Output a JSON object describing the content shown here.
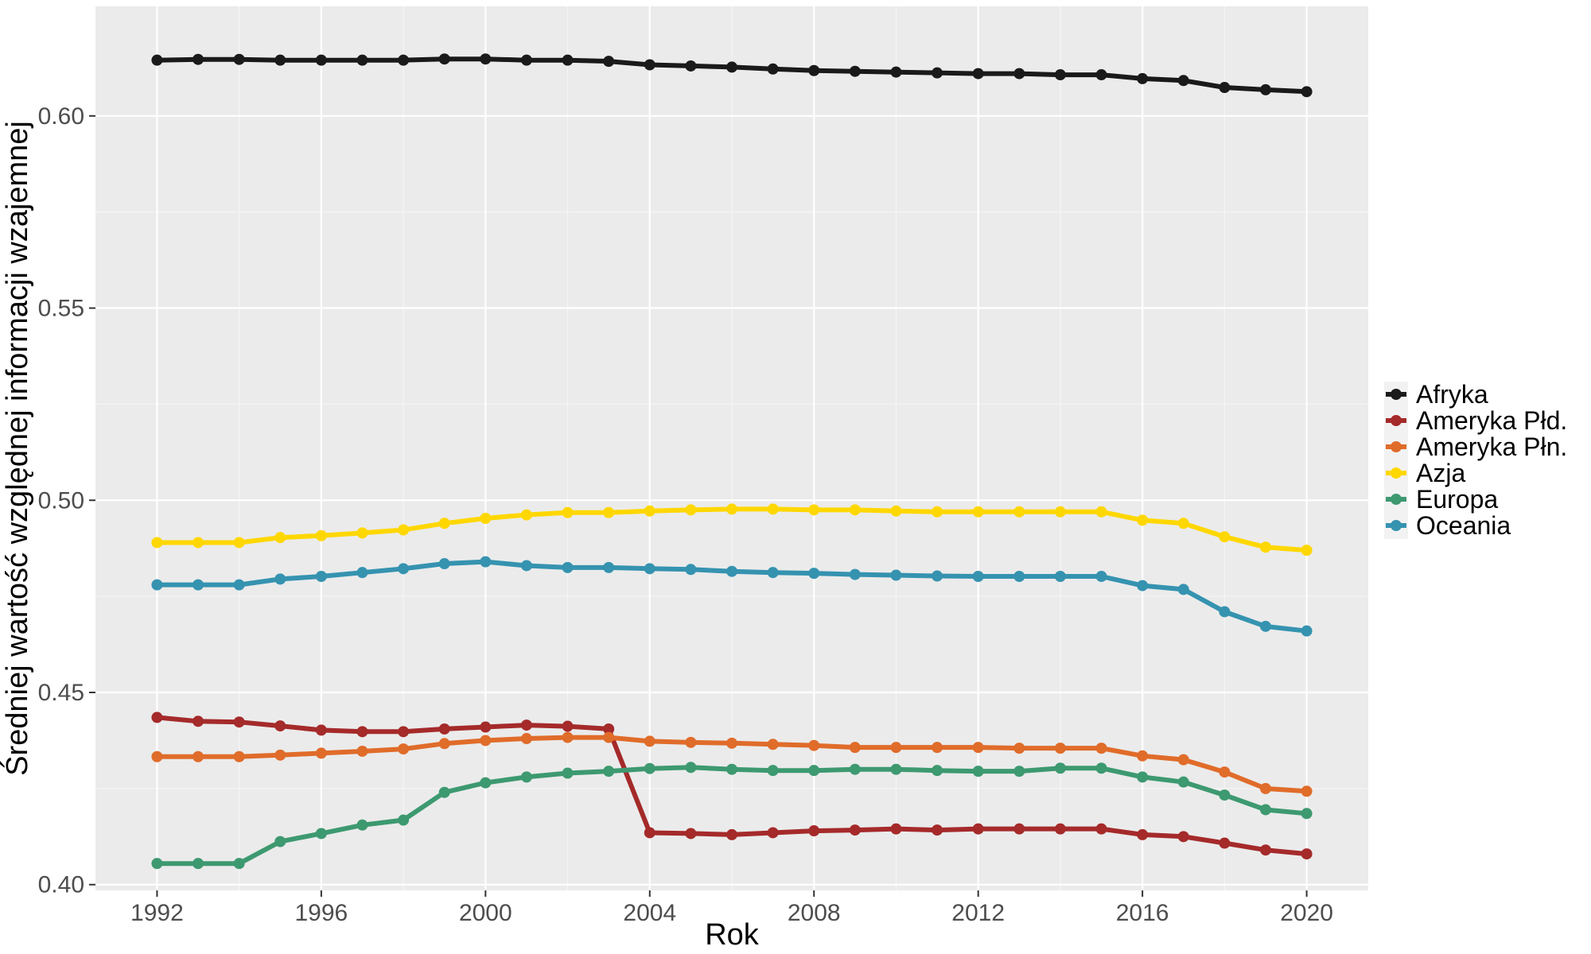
{
  "chart_data": {
    "type": "line",
    "xlabel": "Rok",
    "ylabel": "Średniej wartość względnej informacji wzajemnej",
    "xlim": [
      1990.5,
      2021.5
    ],
    "ylim": [
      0.3985,
      0.6285
    ],
    "x_ticks": [
      1992,
      1996,
      2000,
      2004,
      2008,
      2012,
      2016,
      2020
    ],
    "y_ticks": [
      0.4,
      0.45,
      0.5,
      0.55,
      0.6
    ],
    "y_tick_labels": [
      "0.40",
      "0.45",
      "0.50",
      "0.55",
      "0.60"
    ],
    "grid": true,
    "legend_position": "right",
    "x": [
      1992,
      1993,
      1994,
      1995,
      1996,
      1997,
      1998,
      1999,
      2000,
      2001,
      2002,
      2003,
      2004,
      2005,
      2006,
      2007,
      2008,
      2009,
      2010,
      2011,
      2012,
      2013,
      2014,
      2015,
      2016,
      2017,
      2018,
      2019,
      2020
    ],
    "series": [
      {
        "name": "Afryka",
        "color": "#1a1a1a",
        "values": [
          0.6145,
          0.6147,
          0.6147,
          0.6145,
          0.6145,
          0.6145,
          0.6145,
          0.6148,
          0.6148,
          0.6145,
          0.6145,
          0.6142,
          0.6133,
          0.613,
          0.6127,
          0.6122,
          0.6118,
          0.6116,
          0.6114,
          0.6112,
          0.611,
          0.611,
          0.6107,
          0.6107,
          0.6097,
          0.6092,
          0.6074,
          0.6068,
          0.6063
        ]
      },
      {
        "name": "Ameryka Płd.",
        "color": "#a52a2a",
        "values": [
          0.4435,
          0.4425,
          0.4423,
          0.4413,
          0.4402,
          0.4398,
          0.4398,
          0.4405,
          0.441,
          0.4415,
          0.4412,
          0.4405,
          0.4135,
          0.4133,
          0.413,
          0.4135,
          0.414,
          0.4142,
          0.4145,
          0.4142,
          0.4145,
          0.4145,
          0.4145,
          0.4145,
          0.413,
          0.4125,
          0.4108,
          0.409,
          0.408
        ]
      },
      {
        "name": "Ameryka Płn.",
        "color": "#e06c2a",
        "values": [
          0.4333,
          0.4333,
          0.4333,
          0.4337,
          0.4342,
          0.4347,
          0.4353,
          0.4367,
          0.4375,
          0.438,
          0.4383,
          0.4383,
          0.4373,
          0.437,
          0.4368,
          0.4365,
          0.4362,
          0.4357,
          0.4357,
          0.4357,
          0.4357,
          0.4355,
          0.4355,
          0.4355,
          0.4335,
          0.4325,
          0.4293,
          0.425,
          0.4243
        ]
      },
      {
        "name": "Azja",
        "color": "#ffd700",
        "values": [
          0.489,
          0.489,
          0.489,
          0.4903,
          0.4908,
          0.4915,
          0.4923,
          0.494,
          0.4953,
          0.4962,
          0.4968,
          0.4968,
          0.4972,
          0.4975,
          0.4977,
          0.4977,
          0.4975,
          0.4975,
          0.4972,
          0.497,
          0.497,
          0.497,
          0.497,
          0.497,
          0.4948,
          0.494,
          0.4905,
          0.4878,
          0.487
        ]
      },
      {
        "name": "Europa",
        "color": "#3d9970",
        "values": [
          0.4055,
          0.4055,
          0.4055,
          0.4112,
          0.4133,
          0.4155,
          0.4168,
          0.424,
          0.4265,
          0.428,
          0.429,
          0.4295,
          0.4302,
          0.4305,
          0.43,
          0.4297,
          0.4297,
          0.43,
          0.43,
          0.4297,
          0.4295,
          0.4295,
          0.4303,
          0.4303,
          0.428,
          0.4267,
          0.4233,
          0.4195,
          0.4185
        ]
      },
      {
        "name": "Oceania",
        "color": "#3593b0",
        "values": [
          0.478,
          0.478,
          0.478,
          0.4795,
          0.4802,
          0.4812,
          0.4822,
          0.4835,
          0.484,
          0.483,
          0.4825,
          0.4825,
          0.4822,
          0.482,
          0.4815,
          0.4812,
          0.481,
          0.4807,
          0.4805,
          0.4803,
          0.4802,
          0.4802,
          0.4802,
          0.4802,
          0.4778,
          0.4768,
          0.471,
          0.4672,
          0.466
        ]
      }
    ]
  }
}
